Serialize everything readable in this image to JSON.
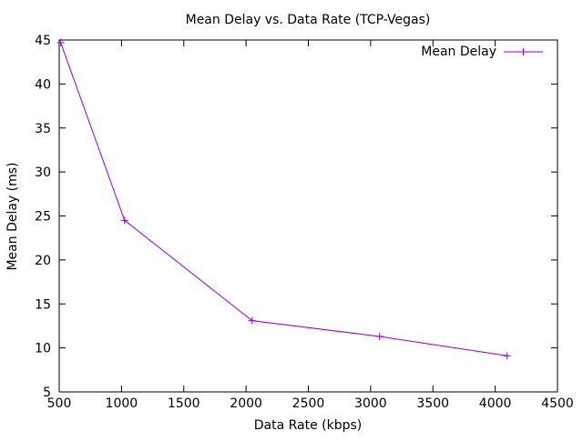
{
  "chart_data": {
    "type": "line",
    "title": "Mean Delay vs. Data Rate (TCP-Vegas)",
    "xlabel": "Data Rate (kbps)",
    "ylabel": "Mean Delay (ms)",
    "xlim": [
      500,
      4500
    ],
    "ylim": [
      5,
      45
    ],
    "xticks": [
      500,
      1000,
      1500,
      2000,
      2500,
      3000,
      3500,
      4000,
      4500
    ],
    "yticks": [
      5,
      10,
      15,
      20,
      25,
      30,
      35,
      40,
      45
    ],
    "grid": false,
    "legend": {
      "placement": "top-right"
    },
    "series": [
      {
        "name": "Mean Delay",
        "color": "#9400d3",
        "marker": "plus",
        "x": [
          512,
          1024,
          2048,
          3072,
          4096
        ],
        "y": [
          44.7,
          24.5,
          13.1,
          11.3,
          9.1
        ]
      }
    ]
  }
}
